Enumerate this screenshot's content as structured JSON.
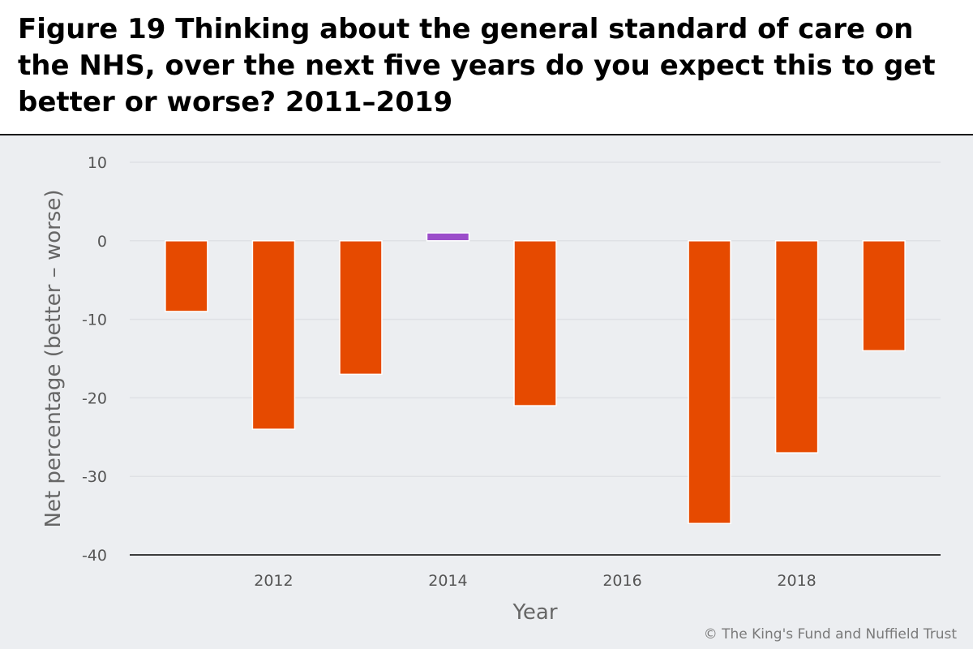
{
  "figure": {
    "title": "Figure 19 Thinking about the general standard of care on the NHS, over the next five years do you expect this to get better or worse? 2011–2019",
    "credit": "© The King's Fund and Nuffield Trust"
  },
  "chart_data": {
    "type": "bar",
    "x": [
      2011,
      2012,
      2013,
      2014,
      2015,
      2016,
      2017,
      2018,
      2019
    ],
    "values": [
      -9,
      -24,
      -17,
      1,
      -21,
      null,
      -36,
      -27,
      -14
    ],
    "xlabel": "Year",
    "ylabel": "Net percentage (better – worse)",
    "xlim": [
      2010.35,
      2019.65
    ],
    "ylim": [
      -40,
      10
    ],
    "xticks": [
      2012,
      2014,
      2016,
      2018
    ],
    "yticks": [
      10,
      0,
      -10,
      -20,
      -30,
      -40
    ],
    "grid": true,
    "colors": {
      "negative": "#e64a00",
      "positive": "#9b4dca",
      "grid": "#dfe1e5",
      "axis": "#000000"
    }
  }
}
